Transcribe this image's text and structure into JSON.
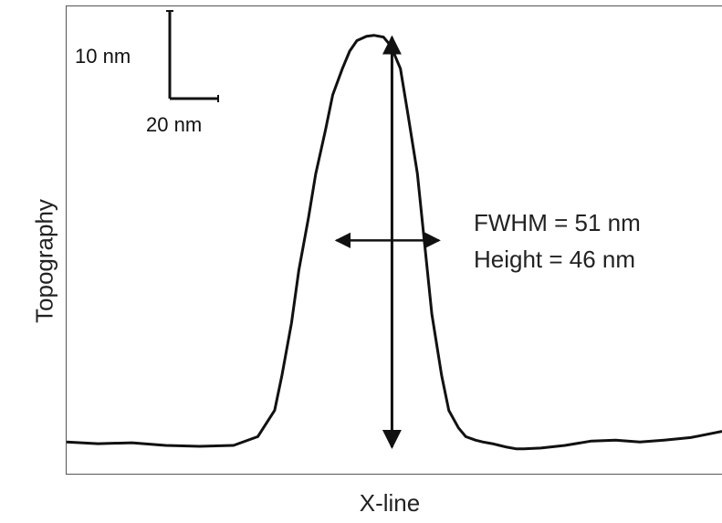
{
  "chart_data": {
    "type": "line",
    "title": "",
    "xlabel": "X-line",
    "ylabel": "Topography",
    "grid": false,
    "legend": "none",
    "x_unit": "nm",
    "y_unit": "nm",
    "xlim": [
      0,
      271
    ],
    "ylim": [
      0,
      50
    ],
    "series": [
      {
        "x": [
          0,
          13,
          27,
          41,
          55,
          69,
          79,
          86,
          89,
          93,
          96,
          100,
          103,
          107,
          110,
          114,
          117,
          120,
          124,
          127,
          131,
          134,
          138,
          141,
          145,
          148,
          151,
          155,
          158,
          162,
          165,
          169,
          172,
          176,
          179,
          182,
          186,
          189,
          196,
          206,
          217,
          227,
          237,
          247,
          258,
          271
        ],
        "y": [
          0.4,
          0.2,
          0.3,
          0.0,
          -0.1,
          0.0,
          1.0,
          4.0,
          8.0,
          14.0,
          20.0,
          26.0,
          31.0,
          36.0,
          40.0,
          43.0,
          45.0,
          46.2,
          46.7,
          46.8,
          46.6,
          45.6,
          43.0,
          38.0,
          31.0,
          23.0,
          15.0,
          8.0,
          4.0,
          2.0,
          1.0,
          0.6,
          0.4,
          0.2,
          0.0,
          -0.2,
          -0.4,
          -0.4,
          -0.3,
          0.0,
          0.5,
          0.6,
          0.4,
          0.6,
          0.9,
          1.6
        ]
      }
    ],
    "annotations": {
      "fwhm": "FWHM = 51 nm",
      "height": "Height = 46 nm",
      "scale_bar_vertical": "10 nm",
      "scale_bar_horizontal": "20 nm"
    }
  }
}
